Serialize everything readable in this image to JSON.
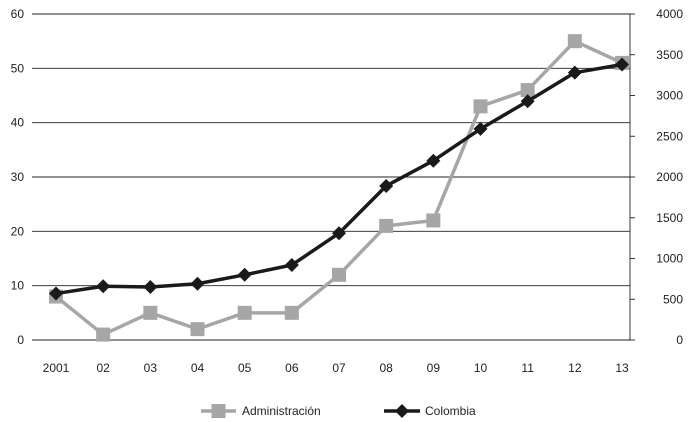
{
  "chart_data": {
    "type": "line",
    "title": "",
    "xlabel": "",
    "ylabel": "",
    "y2label": "",
    "categories": [
      "2001",
      "02",
      "03",
      "04",
      "05",
      "06",
      "07",
      "08",
      "09",
      "10",
      "11",
      "12",
      "13"
    ],
    "ylim": [
      0,
      60
    ],
    "y2lim": [
      0,
      4000
    ],
    "yticks": [
      0,
      10,
      20,
      30,
      40,
      50,
      60
    ],
    "y2ticks": [
      0,
      500,
      1000,
      1500,
      2000,
      2500,
      3000,
      3500,
      4000
    ],
    "grid": true,
    "legend_position": "bottom",
    "series": [
      {
        "name": "Administración",
        "axis": "left",
        "color": "#a6a6a6",
        "marker": "square",
        "values": [
          8,
          1,
          5,
          2,
          5,
          5,
          12,
          21,
          22,
          43,
          46,
          55,
          51
        ]
      },
      {
        "name": "Colombia",
        "axis": "right",
        "color": "#1a1a1a",
        "marker": "diamond",
        "values": [
          570,
          660,
          650,
          690,
          800,
          920,
          1310,
          1890,
          2200,
          2590,
          2930,
          3280,
          3380
        ]
      }
    ]
  }
}
